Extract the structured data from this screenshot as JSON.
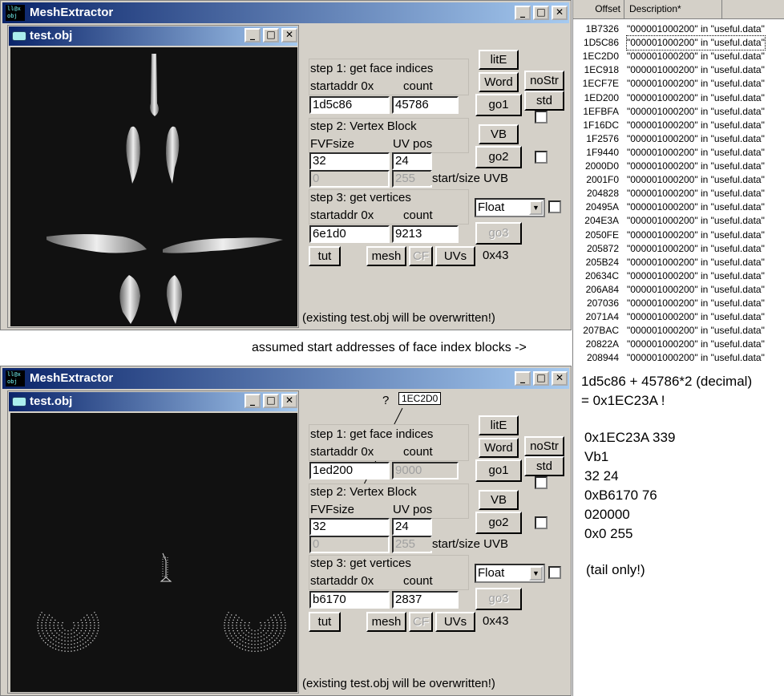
{
  "app_title": "MeshExtractor",
  "app_icon_text": "ll@x obj",
  "child_title": "test.obj",
  "window_controls": {
    "minimize": "_",
    "maximize": "□",
    "close": "✕"
  },
  "top": {
    "step1_label": "step 1: get face indices",
    "startaddr_label": "startaddr 0x",
    "count_label": "count",
    "startaddr": "1d5c86",
    "count": "45786",
    "step2_label": "step 2: Vertex Block",
    "fvfsize_label": "FVFsize",
    "uvpos_label": "UV pos",
    "fvfsize": "32",
    "uvpos": "24",
    "uvb_start": "0",
    "uvb_size": "255",
    "uvb_label": "start/size UVB",
    "step3_label": "step 3: get vertices",
    "vstartaddr_label": "startaddr 0x",
    "vcount_label": "count",
    "vstartaddr": "6e1d0",
    "vcount": "9213",
    "format": "Float",
    "hex_value": "0x43",
    "warning": "(existing test.obj will be overwritten!)"
  },
  "bottom": {
    "question": "?",
    "callout": "1EC2D0",
    "step1_label": "step 1: get face indices",
    "startaddr_label": "startaddr 0x",
    "count_label": "count",
    "startaddr": "1ed200",
    "count": "9000",
    "step2_label": "step 2: Vertex Block",
    "fvfsize_label": "FVFsize",
    "uvpos_label": "UV pos",
    "fvfsize": "32",
    "uvpos": "24",
    "uvb_start": "0",
    "uvb_size": "255",
    "uvb_label": "start/size UVB",
    "step3_label": "step 3: get vertices",
    "vstartaddr_label": "startaddr 0x",
    "vcount_label": "count",
    "vstartaddr": "b6170",
    "vcount": "2837",
    "format": "Float",
    "hex_value": "0x43",
    "warning": "(existing test.obj will be overwritten!)"
  },
  "buttons": {
    "lite": "litE",
    "word": "Word",
    "nostr": "noStr",
    "go1": "go1",
    "std": "std",
    "vb": "VB",
    "go2": "go2",
    "go3": "go3",
    "tut": "tut",
    "mesh": "mesh",
    "cf": "CF",
    "uvs": "UVs"
  },
  "results": {
    "header_offset": "Offset",
    "header_desc": "Description*",
    "rows": [
      {
        "offset": "1B7326",
        "desc": "\"000001000200\" in \"useful.data\""
      },
      {
        "offset": "1D5C86",
        "desc": "\"000001000200\" in \"useful.data\""
      },
      {
        "offset": "1EC2D0",
        "desc": "\"000001000200\" in \"useful.data\""
      },
      {
        "offset": "1EC918",
        "desc": "\"000001000200\" in \"useful.data\""
      },
      {
        "offset": "1ECF7E",
        "desc": "\"000001000200\" in \"useful.data\""
      },
      {
        "offset": "1ED200",
        "desc": "\"000001000200\" in \"useful.data\""
      },
      {
        "offset": "1EFBFA",
        "desc": "\"000001000200\" in \"useful.data\""
      },
      {
        "offset": "1F16DC",
        "desc": "\"000001000200\" in \"useful.data\""
      },
      {
        "offset": "1F2576",
        "desc": "\"000001000200\" in \"useful.data\""
      },
      {
        "offset": "1F9440",
        "desc": "\"000001000200\" in \"useful.data\""
      },
      {
        "offset": "2000D0",
        "desc": "\"000001000200\" in \"useful.data\""
      },
      {
        "offset": "2001F0",
        "desc": "\"000001000200\" in \"useful.data\""
      },
      {
        "offset": "204828",
        "desc": "\"000001000200\" in \"useful.data\""
      },
      {
        "offset": "20495A",
        "desc": "\"000001000200\" in \"useful.data\""
      },
      {
        "offset": "204E3A",
        "desc": "\"000001000200\" in \"useful.data\""
      },
      {
        "offset": "2050FE",
        "desc": "\"000001000200\" in \"useful.data\""
      },
      {
        "offset": "205872",
        "desc": "\"000001000200\" in \"useful.data\""
      },
      {
        "offset": "205B24",
        "desc": "\"000001000200\" in \"useful.data\""
      },
      {
        "offset": "20634C",
        "desc": "\"000001000200\" in \"useful.data\""
      },
      {
        "offset": "206A84",
        "desc": "\"000001000200\" in \"useful.data\""
      },
      {
        "offset": "207036",
        "desc": "\"000001000200\" in \"useful.data\""
      },
      {
        "offset": "2071A4",
        "desc": "\"000001000200\" in \"useful.data\""
      },
      {
        "offset": "207BAC",
        "desc": "\"000001000200\" in \"useful.data\""
      },
      {
        "offset": "20822A",
        "desc": "\"000001000200\" in \"useful.data\""
      },
      {
        "offset": "208944",
        "desc": "\"000001000200\" in \"useful.data\""
      }
    ]
  },
  "annotation_arrow": "assumed start addresses of face index blocks ->",
  "notes": {
    "line1": "1d5c86 + 45786*2 (decimal)",
    "line2": "= 0x1EC23A !",
    "line3": "0x1EC23A 339",
    "line4": "Vb1",
    "line5": "32 24",
    "line6": "0xB6170 76",
    "line7": "020000",
    "line8": "0x0 255",
    "line9": "(tail only!)"
  }
}
